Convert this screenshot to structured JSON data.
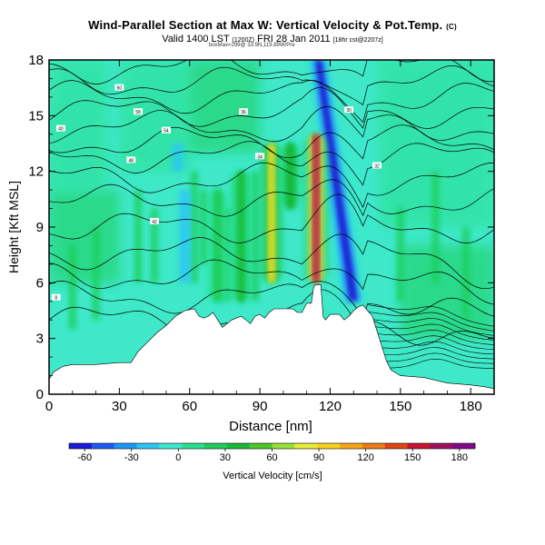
{
  "header": {
    "title": "Wind-Parallel Section at Max W: Vertical Velocity & Pot.Temp.",
    "title_mark": "(C)",
    "valid_line": "Valid 1400 LST",
    "valid_z": "(1200Z)",
    "valid_date": "FRI 28 Jan 2011",
    "model_note": "[18hr cst@2207z]",
    "source_line": "boxMax=299@ 33.9N,119.89W/Pre"
  },
  "chart_data": {
    "type": "heatmap",
    "title": "Wind-Parallel Section at Max W: Vertical Velocity & Pot.Temp.",
    "xlabel": "Distance [nm]",
    "ylabel": "Height [Kft MSL]",
    "xlim": [
      0,
      190
    ],
    "ylim": [
      0,
      18
    ],
    "xticks": [
      "0",
      "30",
      "60",
      "90",
      "120",
      "150",
      "180"
    ],
    "xtick_values": [
      0,
      30,
      60,
      90,
      120,
      150,
      180
    ],
    "yticks": [
      "0",
      "3",
      "6",
      "9",
      "12",
      "15",
      "18"
    ],
    "ytick_values": [
      0,
      3,
      6,
      9,
      12,
      15,
      18
    ],
    "colorbar": {
      "label": "Vertical Velocity [cm/s]",
      "range": [
        -70,
        190
      ],
      "ticks": [
        "-60",
        "-30",
        "0",
        "30",
        "60",
        "90",
        "120",
        "150",
        "180"
      ],
      "tick_values": [
        -60,
        -30,
        0,
        30,
        60,
        90,
        120,
        150,
        180
      ],
      "colors": [
        "#1a1ad8",
        "#1c5cf0",
        "#1e96f5",
        "#2cc6f5",
        "#3ee8d0",
        "#29e090",
        "#1fce5a",
        "#18b83a",
        "#4cc82a",
        "#9ae03a",
        "#e6ef3a",
        "#f7d21e",
        "#f5a81a",
        "#ee7a18",
        "#e04414",
        "#c81830",
        "#a01060",
        "#800a8a"
      ]
    },
    "terrain": [
      [
        0,
        0.8
      ],
      [
        2,
        1.2
      ],
      [
        6,
        1.5
      ],
      [
        10,
        1.6
      ],
      [
        20,
        1.6
      ],
      [
        30,
        1.7
      ],
      [
        35,
        1.7
      ],
      [
        38,
        2.3
      ],
      [
        42,
        2.8
      ],
      [
        46,
        3.3
      ],
      [
        50,
        3.7
      ],
      [
        54,
        4.2
      ],
      [
        58,
        4.5
      ],
      [
        62,
        4.6
      ],
      [
        64,
        4.2
      ],
      [
        66,
        4.1
      ],
      [
        68,
        4.2
      ],
      [
        70,
        4.4
      ],
      [
        72,
        4.0
      ],
      [
        74,
        3.6
      ],
      [
        76,
        3.8
      ],
      [
        78,
        4.0
      ],
      [
        80,
        4.1
      ],
      [
        82,
        4.2
      ],
      [
        84,
        4.0
      ],
      [
        86,
        3.8
      ],
      [
        88,
        4.2
      ],
      [
        90,
        4.3
      ],
      [
        92,
        4.1
      ],
      [
        94,
        4.4
      ],
      [
        96,
        4.6
      ],
      [
        100,
        4.6
      ],
      [
        104,
        4.6
      ],
      [
        106,
        4.4
      ],
      [
        108,
        4.4
      ],
      [
        110,
        4.9
      ],
      [
        112,
        4.9
      ],
      [
        113,
        5.8
      ],
      [
        114,
        5.9
      ],
      [
        116,
        5.9
      ],
      [
        117,
        4.2
      ],
      [
        118,
        4.0
      ],
      [
        120,
        4.3
      ],
      [
        124,
        4.3
      ],
      [
        126,
        4.0
      ],
      [
        128,
        4.2
      ],
      [
        130,
        4.5
      ],
      [
        132,
        4.7
      ],
      [
        134,
        4.8
      ],
      [
        136,
        4.5
      ],
      [
        138,
        4.2
      ],
      [
        140,
        3.4
      ],
      [
        142,
        2.6
      ],
      [
        144,
        1.8
      ],
      [
        146,
        1.3
      ],
      [
        150,
        1.0
      ],
      [
        160,
        0.9
      ],
      [
        170,
        0.6
      ],
      [
        180,
        0.5
      ],
      [
        186,
        0.4
      ],
      [
        190,
        0.3
      ]
    ],
    "updrafts": [
      {
        "x": 95,
        "y_from": 6,
        "y_to": 13.5,
        "peak_cm_s": 90
      },
      {
        "x": 114,
        "y_from": 6,
        "y_to": 14,
        "peak_cm_s": 170
      },
      {
        "x": 82,
        "y_from": 5,
        "y_to": 12,
        "peak_cm_s": 35
      },
      {
        "x": 72,
        "y_from": 5,
        "y_to": 11,
        "peak_cm_s": 30
      },
      {
        "x": 103,
        "y_from": 10,
        "y_to": 13.5,
        "peak_cm_s": 45
      }
    ],
    "downdrafts": [
      {
        "x_bottom": 130,
        "x_top": 115,
        "y_from": 5,
        "y_to": 18,
        "peak_cm_s": -60
      },
      {
        "x": 58,
        "y_from": 6,
        "y_to": 11,
        "peak_cm_s": -15
      },
      {
        "x": 55,
        "y_from": 12,
        "y_to": 13.5,
        "peak_cm_s": -20
      }
    ],
    "contour_labels": [
      "60",
      "58",
      "54",
      "48",
      "42",
      "40",
      "36",
      "34",
      "30",
      "32",
      "8"
    ]
  }
}
